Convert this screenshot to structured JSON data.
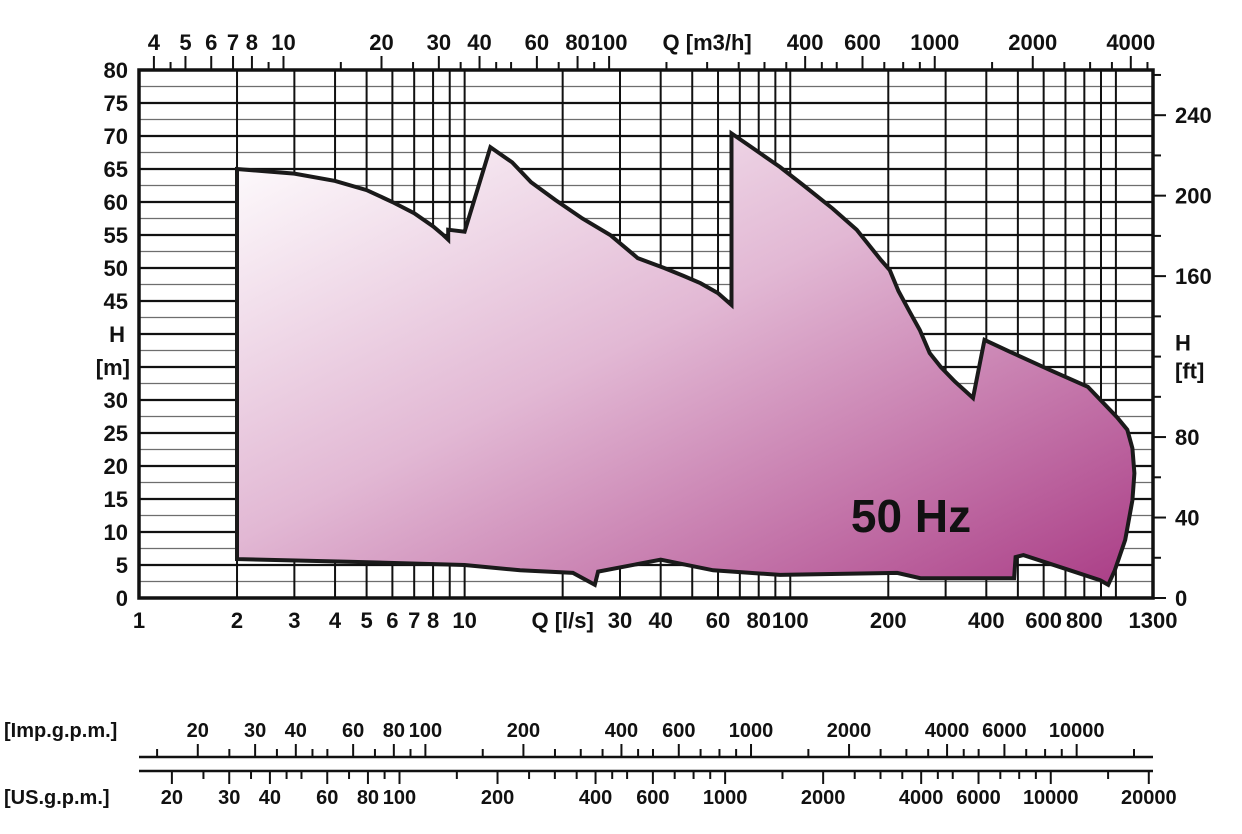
{
  "window": {
    "background": "#ffffff"
  },
  "colors": {
    "envelope_gradient_start": "#ffffff",
    "envelope_gradient_mid": "#e2b8d4",
    "envelope_gradient_end": "#aa3d86",
    "envelope_outline": "#1a1a1a",
    "grid_major": "#111111",
    "grid_minor": "#6e6e6e",
    "frame": "#111111",
    "text": "#111111"
  },
  "chart_data": {
    "type": "area",
    "description": "Pump range coverage chart: head H versus flow Q, logarithmic flow axis, shaded operating envelope",
    "annotation": "50 Hz",
    "x_bottom": {
      "label": "Q [l/s]",
      "scale": "log",
      "min": 1,
      "max": 1300,
      "labeled_ticks": [
        1,
        2,
        3,
        4,
        5,
        6,
        7,
        8,
        10,
        30,
        40,
        60,
        80,
        100,
        200,
        400,
        600,
        800,
        1300
      ],
      "label_position_value": 20
    },
    "x_top": {
      "label": "Q [m3/h]",
      "factor_from_ls": 3.6,
      "labeled_ticks": [
        4,
        5,
        6,
        7,
        8,
        10,
        20,
        30,
        40,
        60,
        80,
        100,
        400,
        600,
        1000,
        2000,
        4000
      ],
      "label_position_value": 200
    },
    "y_left": {
      "label_lines": [
        "H",
        "[m]"
      ],
      "min": 0,
      "max": 80,
      "major_step": 5,
      "minor_step": 2.5,
      "labeled_ticks": [
        0,
        5,
        10,
        15,
        20,
        25,
        30,
        45,
        50,
        55,
        60,
        65,
        70,
        75,
        80
      ],
      "label_position_values": [
        40,
        35
      ]
    },
    "y_right": {
      "label_lines": [
        "H",
        "[ft]"
      ],
      "factor_from_m": 3.2808,
      "tick_step_ft": 20,
      "labeled_ticks": [
        0,
        40,
        80,
        160,
        200,
        240
      ],
      "label_position_value": 120
    },
    "ruler_imp": {
      "label": "[Imp.g.p.m.]",
      "factor_from_ls": 13.198,
      "labeled_ticks": [
        20,
        30,
        40,
        60,
        80,
        100,
        200,
        400,
        600,
        1000,
        2000,
        4000,
        6000,
        10000
      ]
    },
    "ruler_us": {
      "label": "[US.g.p.m.]",
      "factor_from_ls": 15.85,
      "labeled_ticks": [
        20,
        30,
        40,
        60,
        80,
        100,
        200,
        400,
        600,
        1000,
        2000,
        4000,
        6000,
        10000,
        20000
      ]
    },
    "grid_vertical_ls": [
      2,
      3,
      4,
      5,
      6,
      7,
      8,
      9,
      10,
      20,
      30,
      40,
      50,
      60,
      70,
      80,
      90,
      100,
      200,
      300,
      400,
      500,
      600,
      700,
      800,
      900,
      1000
    ],
    "envelope_q_h": [
      [
        2,
        5.9
      ],
      [
        2,
        65
      ],
      [
        3,
        64.3
      ],
      [
        4,
        63.2
      ],
      [
        5,
        61.8
      ],
      [
        6,
        60.0
      ],
      [
        7,
        58.3
      ],
      [
        8,
        56.3
      ],
      [
        8.6,
        55.0
      ],
      [
        8.9,
        54.3
      ],
      [
        8.9,
        55.8
      ],
      [
        10,
        55.5
      ],
      [
        12,
        68.3
      ],
      [
        14,
        66.0
      ],
      [
        16,
        63.0
      ],
      [
        19,
        60.3
      ],
      [
        23,
        57.5
      ],
      [
        28,
        55.0
      ],
      [
        34,
        51.5
      ],
      [
        41,
        50.0
      ],
      [
        47,
        48.8
      ],
      [
        53,
        47.7
      ],
      [
        60,
        46.2
      ],
      [
        66,
        44.4
      ],
      [
        66,
        70.4
      ],
      [
        75,
        68.5
      ],
      [
        93,
        65.3
      ],
      [
        110,
        62.5
      ],
      [
        135,
        59.0
      ],
      [
        160,
        55.8
      ],
      [
        190,
        51.2
      ],
      [
        202,
        49.7
      ],
      [
        215,
        46.5
      ],
      [
        233,
        43.3
      ],
      [
        250,
        40.6
      ],
      [
        268,
        37.1
      ],
      [
        290,
        35.0
      ],
      [
        320,
        32.8
      ],
      [
        364,
        30.3
      ],
      [
        395,
        39.1
      ],
      [
        473,
        37.3
      ],
      [
        630,
        34.5
      ],
      [
        820,
        32.0
      ],
      [
        1008,
        27.4
      ],
      [
        1084,
        25.5
      ],
      [
        1124,
        22.7
      ],
      [
        1140,
        18.9
      ],
      [
        1124,
        14.8
      ],
      [
        1068,
        8.8
      ],
      [
        992,
        4.2
      ],
      [
        947,
        2.0
      ],
      [
        894,
        2.7
      ],
      [
        723,
        4.2
      ],
      [
        520,
        6.5
      ],
      [
        492,
        6.2
      ],
      [
        487,
        3.0
      ],
      [
        251,
        3.0
      ],
      [
        213,
        3.8
      ],
      [
        93,
        3.5
      ],
      [
        58,
        4.2
      ],
      [
        40,
        5.8
      ],
      [
        25.7,
        4.0
      ],
      [
        25.1,
        2.0
      ],
      [
        21.5,
        3.8
      ],
      [
        14.8,
        4.2
      ],
      [
        10,
        5.0
      ],
      [
        4.4,
        5.5
      ]
    ]
  }
}
